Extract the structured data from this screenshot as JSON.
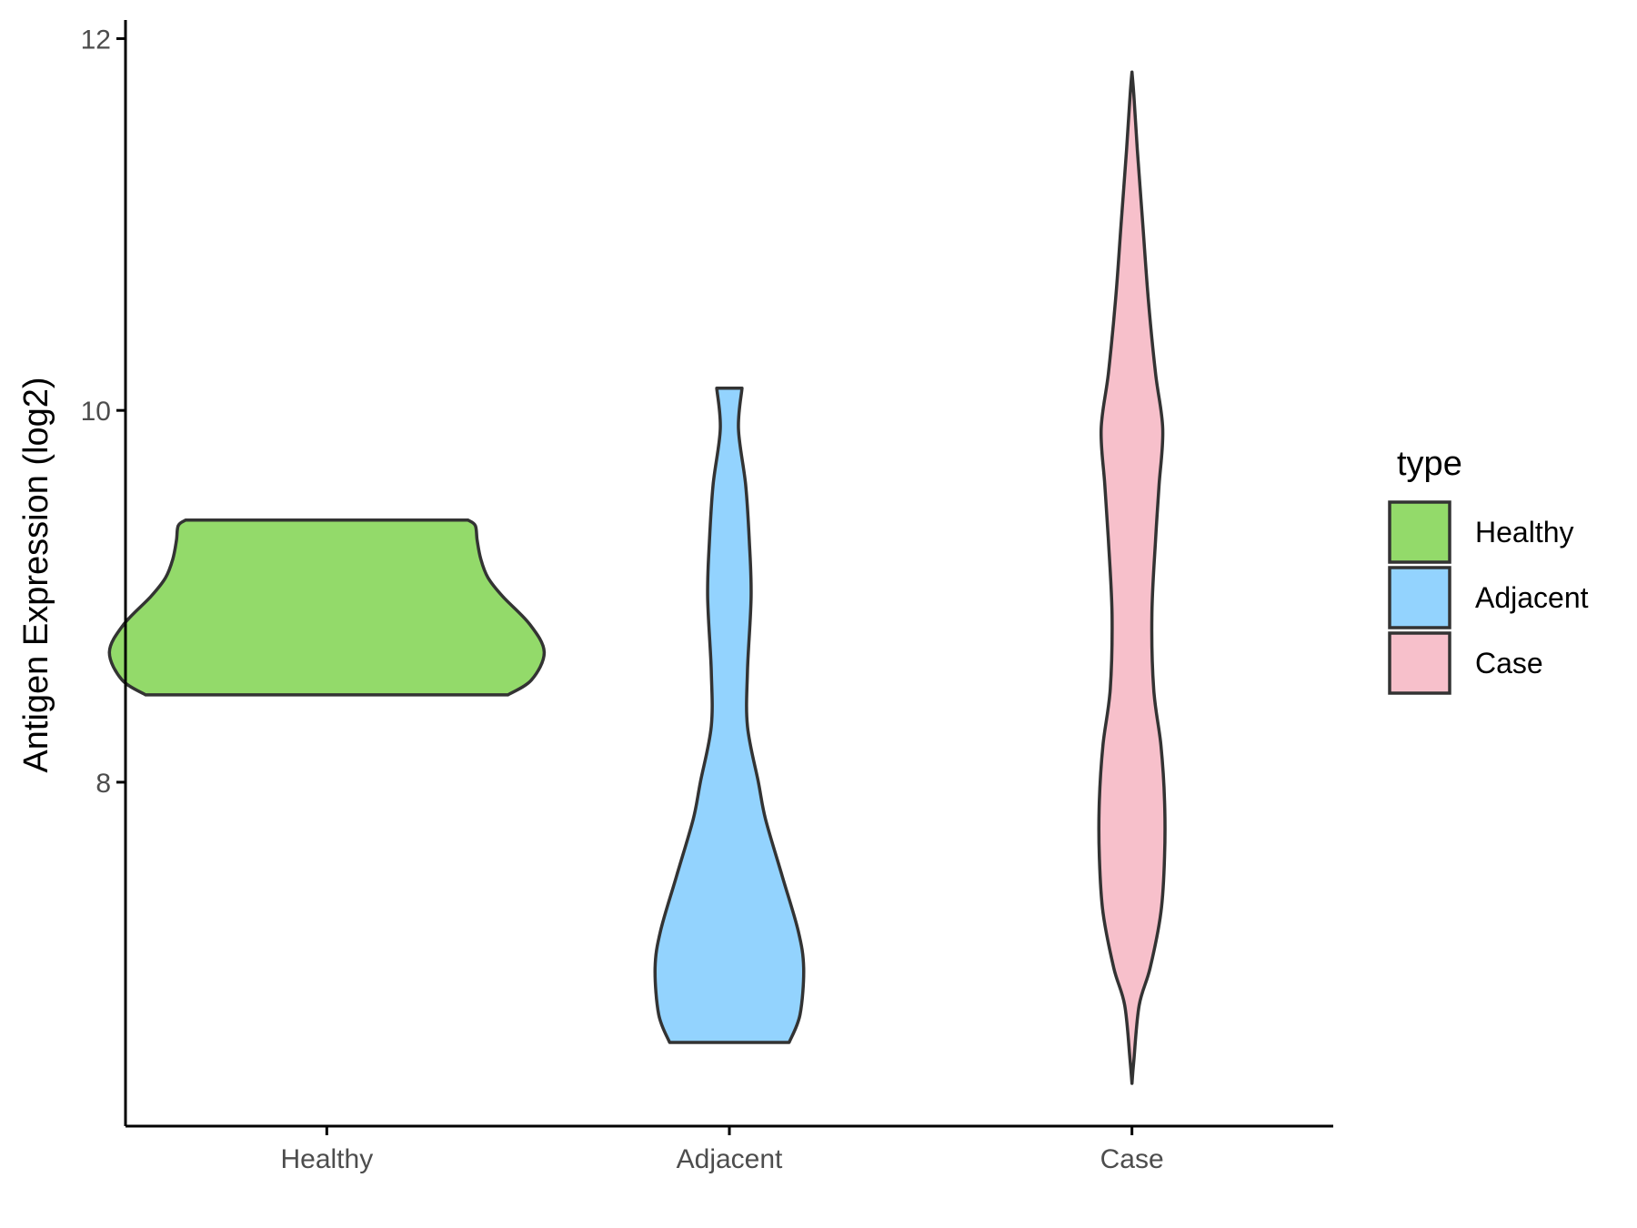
{
  "chart_data": {
    "type": "violin",
    "title": "",
    "xlabel": "",
    "ylabel": "Antigen Expression (log2)",
    "categories": [
      "Healthy",
      "Adjacent",
      "Case"
    ],
    "ylim": [
      6.15,
      12.1
    ],
    "yticks": [
      8,
      10,
      12
    ],
    "grid": false,
    "legend": {
      "title": "type",
      "position": "right",
      "entries": [
        {
          "name": "Healthy",
          "color": "#93DA6A"
        },
        {
          "name": "Adjacent",
          "color": "#93D3FE"
        },
        {
          "name": "Case",
          "color": "#F7C0CB"
        }
      ]
    },
    "series": [
      {
        "name": "Healthy",
        "color": "#93DA6A",
        "profile": [
          [
            8.47,
            1.0
          ],
          [
            8.55,
            1.13
          ],
          [
            8.7,
            1.2
          ],
          [
            8.85,
            1.12
          ],
          [
            9.0,
            0.97
          ],
          [
            9.1,
            0.89
          ],
          [
            9.2,
            0.85
          ],
          [
            9.3,
            0.83
          ],
          [
            9.38,
            0.82
          ],
          [
            9.41,
            0.78
          ]
        ]
      },
      {
        "name": "Adjacent",
        "color": "#93D3FE",
        "profile": [
          [
            6.6,
            0.33
          ],
          [
            6.75,
            0.39
          ],
          [
            7.0,
            0.41
          ],
          [
            7.2,
            0.38
          ],
          [
            7.5,
            0.29
          ],
          [
            7.8,
            0.2
          ],
          [
            8.0,
            0.16
          ],
          [
            8.3,
            0.1
          ],
          [
            8.6,
            0.1
          ],
          [
            9.0,
            0.12
          ],
          [
            9.3,
            0.11
          ],
          [
            9.6,
            0.09
          ],
          [
            9.9,
            0.05
          ],
          [
            10.12,
            0.07
          ]
        ]
      },
      {
        "name": "Case",
        "color": "#F7C0CB",
        "profile": [
          [
            6.38,
            0.0
          ],
          [
            6.5,
            0.01
          ],
          [
            6.8,
            0.04
          ],
          [
            7.0,
            0.1
          ],
          [
            7.3,
            0.16
          ],
          [
            7.6,
            0.18
          ],
          [
            7.9,
            0.18
          ],
          [
            8.2,
            0.16
          ],
          [
            8.5,
            0.12
          ],
          [
            8.9,
            0.11
          ],
          [
            9.3,
            0.13
          ],
          [
            9.6,
            0.15
          ],
          [
            9.9,
            0.17
          ],
          [
            10.2,
            0.13
          ],
          [
            10.6,
            0.09
          ],
          [
            11.0,
            0.06
          ],
          [
            11.4,
            0.03
          ],
          [
            11.7,
            0.01
          ],
          [
            11.82,
            0.0
          ]
        ]
      }
    ]
  }
}
